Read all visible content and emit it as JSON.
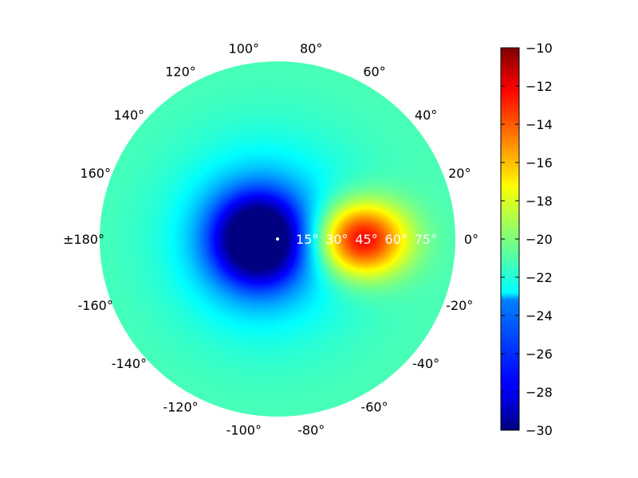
{
  "chart_data": {
    "type": "heatmap",
    "projection": "polar",
    "angle_ticks": [
      {
        "deg": 0,
        "label": "0°"
      },
      {
        "deg": 20,
        "label": "20°"
      },
      {
        "deg": 40,
        "label": "40°"
      },
      {
        "deg": 60,
        "label": "60°"
      },
      {
        "deg": 80,
        "label": "80°"
      },
      {
        "deg": 100,
        "label": "100°"
      },
      {
        "deg": 120,
        "label": "120°"
      },
      {
        "deg": 140,
        "label": "140°"
      },
      {
        "deg": 160,
        "label": "160°"
      },
      {
        "deg": 180,
        "label": "±180°"
      },
      {
        "deg": -160,
        "label": "-160°"
      },
      {
        "deg": -140,
        "label": "-140°"
      },
      {
        "deg": -120,
        "label": "-120°"
      },
      {
        "deg": -100,
        "label": "-100°"
      },
      {
        "deg": -80,
        "label": "-80°"
      },
      {
        "deg": -60,
        "label": "-60°"
      },
      {
        "deg": -40,
        "label": "-40°"
      },
      {
        "deg": -20,
        "label": "-20°"
      }
    ],
    "radial_ticks": [
      {
        "value": 15,
        "label": "15°"
      },
      {
        "value": 30,
        "label": "30°"
      },
      {
        "value": 45,
        "label": "45°"
      },
      {
        "value": 60,
        "label": "60°"
      },
      {
        "value": 75,
        "label": "75°"
      }
    ],
    "radial_range": [
      0,
      90
    ],
    "colormap": "jet",
    "colorbar": {
      "range": [
        -30,
        -10
      ],
      "ticks": [
        -30,
        -28,
        -26,
        -24,
        -22,
        -20,
        -18,
        -16,
        -14,
        -12,
        -10
      ]
    },
    "field_description_points": [
      {
        "theta_deg": 0,
        "r": 40,
        "value": -10
      },
      {
        "theta_deg": 0,
        "r": 0,
        "value": -30
      },
      {
        "theta_deg": 180,
        "r": 20,
        "value": -30
      },
      {
        "theta_deg": 90,
        "r": 90,
        "value": -21
      }
    ]
  }
}
